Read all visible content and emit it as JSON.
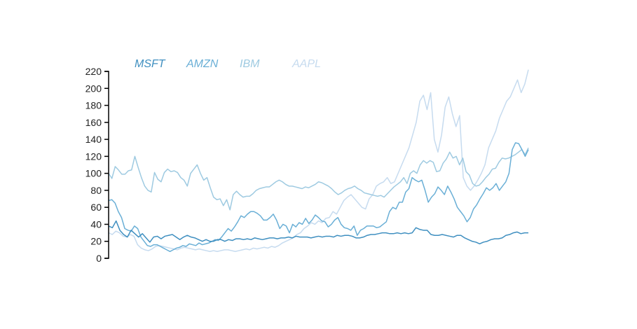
{
  "chart_data": {
    "type": "line",
    "title": "",
    "xlabel": "",
    "ylabel": "",
    "ylim": [
      0,
      220
    ],
    "yticks": [
      0,
      20,
      40,
      60,
      80,
      100,
      120,
      140,
      160,
      180,
      200,
      220
    ],
    "legend_position": "top-left",
    "grid": false,
    "x_axis_visible": false,
    "series": [
      {
        "name": "MSFT",
        "color": "#3f8fc0",
        "values": [
          38,
          36,
          44,
          33,
          28,
          25,
          33,
          29,
          25,
          29,
          24,
          19,
          25,
          26,
          23,
          26,
          27,
          28,
          25,
          22,
          25,
          27,
          25,
          24,
          22,
          20,
          22,
          20,
          20,
          22,
          22,
          20,
          22,
          21,
          23,
          23,
          22,
          23,
          22,
          24,
          23,
          22,
          23,
          24,
          24,
          23,
          24,
          24,
          25,
          24,
          26,
          25,
          25,
          25,
          24,
          25,
          26,
          25,
          26,
          26,
          25,
          27,
          26,
          27,
          27,
          26,
          24,
          24,
          25,
          27,
          28,
          28,
          29,
          30,
          30,
          29,
          29,
          30,
          29,
          30,
          29,
          30,
          36,
          34,
          33,
          33,
          28,
          27,
          27,
          28,
          27,
          26,
          25,
          27,
          27,
          24,
          22,
          20,
          19,
          17,
          19,
          20,
          22,
          23,
          23,
          24,
          27,
          28,
          30,
          31,
          29,
          30,
          30
        ]
      },
      {
        "name": "AMZN",
        "color": "#6aafd6",
        "values": [
          68,
          69,
          65,
          55,
          48,
          35,
          33,
          32,
          38,
          35,
          25,
          20,
          15,
          14,
          16,
          16,
          14,
          12,
          10,
          8,
          10,
          12,
          13,
          15,
          14,
          17,
          16,
          15,
          18,
          16,
          17,
          18,
          20,
          22,
          21,
          25,
          30,
          35,
          32,
          37,
          43,
          50,
          48,
          52,
          55,
          55,
          53,
          50,
          45,
          45,
          48,
          52,
          45,
          35,
          40,
          38,
          30,
          40,
          37,
          42,
          40,
          47,
          41,
          45,
          51,
          48,
          44,
          43,
          37,
          40,
          45,
          48,
          40,
          36,
          35,
          33,
          38,
          27,
          33,
          35,
          38,
          38,
          38,
          36,
          37,
          40,
          43,
          55,
          60,
          58,
          66,
          66,
          78,
          82,
          95,
          92,
          90,
          92,
          80,
          66,
          72,
          76,
          84,
          80,
          75,
          85,
          78,
          70,
          60,
          55,
          50,
          43,
          48,
          58,
          63,
          70,
          76,
          83,
          80,
          83,
          88,
          80,
          85,
          90,
          100,
          128,
          136,
          135,
          128,
          120,
          128
        ]
      },
      {
        "name": "IBM",
        "color": "#9ecae1",
        "values": [
          100,
          94,
          108,
          104,
          99,
          99,
          103,
          104,
          120,
          107,
          95,
          85,
          80,
          78,
          101,
          93,
          90,
          101,
          105,
          102,
          103,
          101,
          95,
          92,
          85,
          100,
          105,
          110,
          100,
          92,
          95,
          83,
          72,
          69,
          70,
          62,
          69,
          57,
          75,
          79,
          75,
          72,
          73,
          73,
          76,
          80,
          82,
          83,
          84,
          84,
          87,
          90,
          92,
          90,
          87,
          85,
          85,
          84,
          83,
          82,
          84,
          83,
          85,
          87,
          90,
          89,
          87,
          85,
          82,
          78,
          75,
          77,
          80,
          82,
          83,
          85,
          82,
          80,
          77,
          76,
          75,
          74,
          73,
          74,
          72,
          76,
          80,
          84,
          87,
          90,
          95,
          88,
          100,
          103,
          100,
          110,
          115,
          112,
          115,
          113,
          102,
          103,
          112,
          117,
          125,
          118,
          120,
          110,
          118,
          102,
          98,
          88,
          85,
          86,
          90,
          95,
          99,
          105,
          106,
          113,
          118,
          117,
          118,
          120,
          122,
          125,
          128,
          122,
          130
        ]
      },
      {
        "name": "AAPL",
        "color": "#c6dbef",
        "values": [
          30,
          28,
          32,
          30,
          26,
          25,
          28,
          26,
          16,
          12,
          10,
          9,
          11,
          14,
          15,
          14,
          13,
          12,
          11,
          10,
          12,
          13,
          12,
          11,
          10,
          11,
          10,
          9,
          8,
          9,
          8,
          9,
          10,
          10,
          9,
          8,
          9,
          10,
          11,
          10,
          12,
          11,
          12,
          13,
          12,
          14,
          13,
          15,
          18,
          20,
          22,
          24,
          28,
          30,
          35,
          38,
          42,
          40,
          44,
          42,
          47,
          48,
          55,
          52,
          60,
          68,
          72,
          75,
          70,
          65,
          60,
          58,
          70,
          75,
          85,
          88,
          90,
          95,
          88,
          90,
          100,
          110,
          120,
          130,
          145,
          160,
          185,
          192,
          175,
          195,
          140,
          125,
          145,
          178,
          190,
          170,
          155,
          168,
          95,
          85,
          80,
          85,
          92,
          100,
          110,
          130,
          140,
          150,
          165,
          175,
          185,
          190,
          200,
          210,
          195,
          205,
          222
        ]
      }
    ]
  }
}
